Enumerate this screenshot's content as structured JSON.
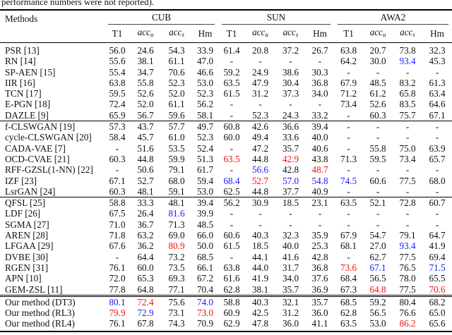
{
  "caption": "performance numbers were not reported).",
  "header": {
    "methods": "Methods",
    "datasets": [
      "CUB",
      "SUN",
      "AWA2"
    ],
    "metrics": [
      {
        "base": "T1",
        "sub": ""
      },
      {
        "base": "acc",
        "sub": "u"
      },
      {
        "base": "acc",
        "sub": "s"
      },
      {
        "base": "Hm",
        "sub": ""
      }
    ]
  },
  "colors": {
    "red": "#f01010",
    "blue": "#1a1aff"
  },
  "groups": [
    [
      {
        "method": "PSR [13]",
        "cells": [
          "56.0",
          "24.6",
          "54.3",
          "33.9",
          "61.4",
          "20.8",
          "37.2",
          "26.7",
          "63.8",
          "20.7",
          "73.8",
          "32.3"
        ]
      },
      {
        "method": "RN [14]",
        "cells": [
          "55.6",
          "38.1",
          "61.1",
          "47.0",
          "-",
          "-",
          "-",
          "-",
          "64.2",
          "30.0",
          "93.4",
          "45.3"
        ],
        "blue": [
          10
        ]
      },
      {
        "method": "SP-AEN [15]",
        "cells": [
          "55.4",
          "34.7",
          "70.6",
          "46.6",
          "59.2",
          "24.9",
          "38.6",
          "30.3",
          "-",
          "-",
          "-",
          "-"
        ]
      },
      {
        "method": "IIR [16]",
        "cells": [
          "63.8",
          "55.8",
          "52.3",
          "53.0",
          "63.5",
          "47.9",
          "30.4",
          "36.8",
          "67.9",
          "48.5",
          "83.2",
          "61.3"
        ]
      },
      {
        "method": "TCN [17]",
        "cells": [
          "59.5",
          "52.6",
          "52.0",
          "52.3",
          "61.5",
          "31.2",
          "37.3",
          "34.0",
          "71.2",
          "61.2",
          "65.8",
          "63.4"
        ]
      },
      {
        "method": "E-PGN [18]",
        "cells": [
          "72.4",
          "52.0",
          "61.1",
          "56.2",
          "-",
          "-",
          "-",
          "-",
          "73.4",
          "52.6",
          "83.5",
          "64.6"
        ]
      },
      {
        "method": "DAZLE [9]",
        "cells": [
          "65.9",
          "56.7",
          "59.6",
          "58.1",
          "-",
          "52.3",
          "24.3",
          "33.2",
          "-",
          "60.3",
          "75.7",
          "67.1"
        ]
      }
    ],
    [
      {
        "method": "f-CLSWGAN [19]",
        "cells": [
          "57.3",
          "43.7",
          "57.7",
          "49.7",
          "60.8",
          "42.6",
          "36.6",
          "39.4",
          "-",
          "-",
          "-",
          "-"
        ]
      },
      {
        "method": "cycle-CLSWGAN [20]",
        "cells": [
          "58.4",
          "45.7",
          "61.0",
          "52.3",
          "60.0",
          "49.4",
          "33.6",
          "40.0",
          "-",
          "-",
          "-",
          "-"
        ]
      },
      {
        "method": "CADA-VAE [7]",
        "cells": [
          "-",
          "51.6",
          "53.5",
          "52.4",
          "-",
          "47.2",
          "35.7",
          "40.6",
          "-",
          "55.8",
          "75.0",
          "63.9"
        ]
      },
      {
        "method": "OCD-CVAE [21]",
        "cells": [
          "60.3",
          "44.8",
          "59.9",
          "51.3",
          "63.5",
          "44.8",
          "42.9",
          "43.8",
          "71.3",
          "59.5",
          "73.4",
          "65.7"
        ],
        "red": [
          4,
          6
        ]
      },
      {
        "method": "RFF-GZSL(1-NN) [22]",
        "cells": [
          "-",
          "50.6",
          "79.1",
          "61.7",
          "-",
          "56.6",
          "42.8",
          "48.7",
          "-",
          "-",
          "-",
          "-"
        ],
        "blue": [
          5
        ],
        "red": [
          7
        ]
      },
      {
        "method": "IZF [23]",
        "cells": [
          "67.1",
          "52.7",
          "68.0",
          "59.4",
          "68.4",
          "52.7",
          "57.0",
          "54.8",
          "74.5",
          "60.6",
          "77.5",
          "68.0"
        ],
        "blue": [
          4,
          6,
          7,
          8
        ],
        "red": [
          5
        ]
      },
      {
        "method": "LsrGAN [24]",
        "cells": [
          "60.3",
          "48.1",
          "59.1",
          "53.0",
          "62.5",
          "44.8",
          "37.7",
          "40.9",
          "-",
          "-",
          "-",
          "-"
        ]
      }
    ],
    [
      {
        "method": "QFSL [25]",
        "cells": [
          "58.8",
          "33.3",
          "48.1",
          "39.4",
          "56.2",
          "30.9",
          "18.5",
          "23.1",
          "63.5",
          "52.1",
          "72.8",
          "60.7"
        ]
      },
      {
        "method": "LDF [26]",
        "cells": [
          "67.5",
          "26.4",
          "81.6",
          "39.9",
          "-",
          "-",
          "-",
          "-",
          "-",
          "-",
          "-",
          "-"
        ],
        "blue": [
          2
        ]
      },
      {
        "method": "SGMA [27]",
        "cells": [
          "71.0",
          "36.7",
          "71.3",
          "48.5",
          "-",
          "-",
          "-",
          "-",
          "-",
          "-",
          "-",
          "-"
        ]
      },
      {
        "method": "AREN [28]",
        "cells": [
          "71.8",
          "63.2",
          "69.0",
          "66.0",
          "60.6",
          "40.3",
          "32.3",
          "35.9",
          "67.9",
          "54.7",
          "79.1",
          "64.7"
        ]
      },
      {
        "method": "LFGAA [29]",
        "cells": [
          "67.6",
          "36.2",
          "80.9",
          "50.0",
          "61.5",
          "18.5",
          "40.0",
          "25.3",
          "68.1",
          "27.0",
          "93.4",
          "41.9"
        ],
        "red": [
          2
        ],
        "blue": [
          10
        ]
      },
      {
        "method": "DVBE [30]",
        "cells": [
          "-",
          "64.4",
          "73.2",
          "68.5",
          "-",
          "44.1",
          "41.6",
          "42.8",
          "-",
          "62.7",
          "77.5",
          "69.4"
        ]
      },
      {
        "method": "RGEN [31]",
        "cells": [
          "76.1",
          "60.0",
          "73.5",
          "66.1",
          "63.8",
          "44.0",
          "31.7",
          "36.8",
          "73.6",
          "67.1",
          "76.5",
          "71.5"
        ],
        "red": [
          8
        ],
        "blue": [
          9,
          11
        ]
      },
      {
        "method": "APN [10]",
        "cells": [
          "72.0",
          "65.3",
          "69.3",
          "67.2",
          "61.6",
          "41.9",
          "34.0",
          "37.6",
          "68.4",
          "56.5",
          "78.0",
          "65.5"
        ]
      },
      {
        "method": "GEM-ZSL [11]",
        "cells": [
          "77.8",
          "64.8",
          "77.1",
          "70.4",
          "62.8",
          "38.1",
          "35.7",
          "36.9",
          "67.3",
          "64.8",
          "77.5",
          "70.6"
        ],
        "red": [
          9,
          11
        ]
      }
    ],
    [
      {
        "method": "Our method (DT3)",
        "cells": [
          "80.1",
          "72.4",
          "75.6",
          "74.0",
          "58.8",
          "40.3",
          "32.1",
          "35.7",
          "68.5",
          "59.2",
          "80.4",
          "68.2"
        ],
        "blue": [
          0,
          3
        ],
        "red": [
          1
        ]
      },
      {
        "method": "Our method (RL3)",
        "cells": [
          "79.9",
          "72.9",
          "73.1",
          "73.0",
          "60.9",
          "42.5",
          "31.2",
          "36.0",
          "62.8",
          "56.5",
          "76.6",
          "65.0"
        ],
        "red": [
          0,
          3
        ],
        "blue": [
          1
        ]
      },
      {
        "method": "Our method (RL4)",
        "cells": [
          "76.1",
          "67.8",
          "74.3",
          "70.9",
          "62.9",
          "47.8",
          "36.0",
          "41.1",
          "63.5",
          "53.0",
          "86.2",
          "65.6"
        ],
        "red": [
          10
        ]
      }
    ]
  ]
}
